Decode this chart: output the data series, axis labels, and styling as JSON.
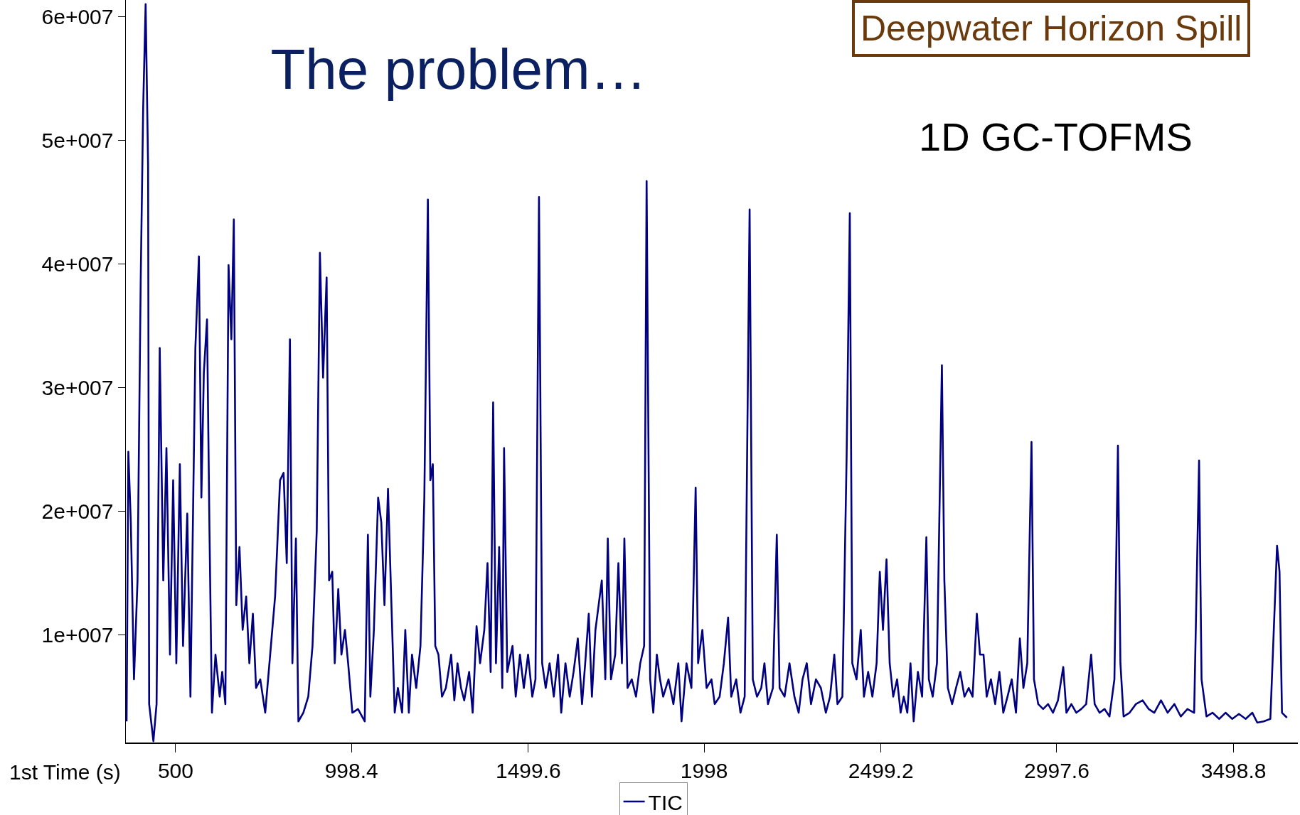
{
  "chart_data": {
    "type": "line",
    "title": "The problem…",
    "xlabel": "1st Time (s)",
    "annotations": [
      "1D GC-TOFMS",
      "Deepwater Horizon Spill"
    ],
    "xlim": [
      359,
      3681
    ],
    "ylim": [
      1290000,
      61340000
    ],
    "xticks": [
      500,
      998.4,
      1499.6,
      1998,
      2499.2,
      2997.6,
      3498.8
    ],
    "yticks": [
      {
        "value": 10000000,
        "label": "1e+007"
      },
      {
        "value": 20000000,
        "label": "2e+007"
      },
      {
        "value": 30000000,
        "label": "3e+007"
      },
      {
        "value": 40000000,
        "label": "4e+007"
      },
      {
        "value": 50000000,
        "label": "5e+007"
      },
      {
        "value": 60000000,
        "label": "6e+007"
      }
    ],
    "grid": false,
    "legend": "bottom",
    "marker": "none",
    "line_style": "solid",
    "x": [
      361,
      366,
      373,
      382,
      392,
      401,
      408,
      415,
      422,
      425,
      437,
      446,
      455,
      465,
      474,
      484,
      493,
      502,
      512,
      521,
      533,
      542,
      556,
      566,
      573,
      580,
      589,
      596,
      603,
      613,
      625,
      632,
      641,
      650,
      658,
      665,
      672,
      681,
      690,
      700,
      709,
      719,
      728,
      740,
      754,
      768,
      782,
      796,
      806,
      815,
      824,
      831,
      841,
      848,
      862,
      876,
      888,
      900,
      909,
      918,
      928,
      935,
      944,
      951,
      961,
      970,
      980,
      989,
      1001,
      1017,
      1036,
      1045,
      1052,
      1062,
      1074,
      1083,
      1092,
      1102,
      1111,
      1121,
      1130,
      1142,
      1151,
      1161,
      1170,
      1182,
      1194,
      1205,
      1215,
      1222,
      1229,
      1236,
      1245,
      1255,
      1266,
      1281,
      1290,
      1299,
      1309,
      1318,
      1332,
      1342,
      1353,
      1363,
      1375,
      1384,
      1393,
      1400,
      1408,
      1417,
      1426,
      1431,
      1440,
      1455,
      1464,
      1476,
      1487,
      1499,
      1511,
      1520,
      1530,
      1539,
      1549,
      1560,
      1572,
      1584,
      1593,
      1605,
      1617,
      1628,
      1640,
      1652,
      1661,
      1671,
      1680,
      1690,
      1699,
      1708,
      1718,
      1725,
      1734,
      1746,
      1755,
      1765,
      1772,
      1781,
      1793,
      1805,
      1817,
      1828,
      1835,
      1845,
      1854,
      1864,
      1873,
      1882,
      1897,
      1911,
      1925,
      1934,
      1948,
      1962,
      1974,
      1981,
      1993,
      2005,
      2019,
      2028,
      2042,
      2054,
      2066,
      2075,
      2089,
      2101,
      2113,
      2127,
      2136,
      2148,
      2160,
      2169,
      2179,
      2193,
      2204,
      2212,
      2226,
      2240,
      2254,
      2266,
      2277,
      2289,
      2301,
      2315,
      2329,
      2343,
      2355,
      2367,
      2376,
      2390,
      2402,
      2411,
      2418,
      2430,
      2442,
      2451,
      2463,
      2475,
      2487,
      2496,
      2505,
      2515,
      2524,
      2534,
      2545,
      2555,
      2564,
      2574,
      2583,
      2592,
      2604,
      2616,
      2628,
      2635,
      2646,
      2658,
      2672,
      2679,
      2689,
      2701,
      2712,
      2724,
      2736,
      2748,
      2759,
      2771,
      2780,
      2790,
      2799,
      2811,
      2823,
      2835,
      2846,
      2858,
      2870,
      2882,
      2893,
      2903,
      2914,
      2926,
      2933,
      2945,
      2959,
      2973,
      2987,
      3001,
      3016,
      3025,
      3039,
      3053,
      3067,
      3081,
      3095,
      3105,
      3119,
      3133,
      3147,
      3161,
      3171,
      3178,
      3187,
      3204,
      3222,
      3241,
      3258,
      3274,
      3293,
      3312,
      3331,
      3349,
      3368,
      3387,
      3401,
      3408,
      3422,
      3439,
      3458,
      3476,
      3495,
      3514,
      3533,
      3552,
      3566,
      3584,
      3603,
      3622,
      3629,
      3636,
      3650
    ],
    "series": [
      {
        "name": "TIC",
        "color": "#000080",
        "values": [
          3000000.0,
          24800000.0,
          19100000.0,
          6400000.0,
          14400000.0,
          38600000.0,
          52600000.0,
          61000000.0,
          47900000.0,
          4400000.0,
          1400000.0,
          4400000.0,
          33200000.0,
          14400000.0,
          25100000.0,
          8400000.0,
          22500000.0,
          7700000.0,
          23800000.0,
          9100000.0,
          19800000.0,
          5000000.0,
          33200000.0,
          40600000.0,
          21100000.0,
          31200000.0,
          35500000.0,
          18400000.0,
          3700000.0,
          8400000.0,
          5000000.0,
          7000000.0,
          4400000.0,
          39900000.0,
          33900000.0,
          43600000.0,
          12400000.0,
          17100000.0,
          10400000.0,
          13100000.0,
          7700000.0,
          11700000.0,
          5700000.0,
          6400000.0,
          3700000.0,
          8400000.0,
          13100000.0,
          22500000.0,
          23100000.0,
          15800000.0,
          33900000.0,
          7700000.0,
          17800000.0,
          3000000.0,
          3700000.0,
          5000000.0,
          9100000.0,
          18400000.0,
          40900000.0,
          30800000.0,
          38900000.0,
          14400000.0,
          15100000.0,
          7700000.0,
          13700000.0,
          8400000.0,
          10400000.0,
          7700000.0,
          3700000.0,
          4000000.0,
          3000000.0,
          18100000.0,
          5000000.0,
          10400000.0,
          21100000.0,
          19100000.0,
          12400000.0,
          21800000.0,
          13100000.0,
          3700000.0,
          5700000.0,
          3700000.0,
          10400000.0,
          3700000.0,
          8400000.0,
          5700000.0,
          9100000.0,
          21100000.0,
          45200000.0,
          22500000.0,
          23800000.0,
          9100000.0,
          8400000.0,
          5000000.0,
          5700000.0,
          8400000.0,
          4700000.0,
          7700000.0,
          5700000.0,
          4700000.0,
          7000000.0,
          3700000.0,
          10700000.0,
          7700000.0,
          10400000.0,
          15800000.0,
          7000000.0,
          28800000.0,
          7700000.0,
          17100000.0,
          5700000.0,
          25100000.0,
          7000000.0,
          9100000.0,
          5000000.0,
          8400000.0,
          5700000.0,
          8400000.0,
          5000000.0,
          6400000.0,
          45400000.0,
          7700000.0,
          5700000.0,
          7700000.0,
          5000000.0,
          8400000.0,
          3700000.0,
          7700000.0,
          5000000.0,
          7000000.0,
          9700000.0,
          4400000.0,
          7700000.0,
          11700000.0,
          5000000.0,
          10400000.0,
          12400000.0,
          14400000.0,
          6400000.0,
          17800000.0,
          6400000.0,
          8400000.0,
          15800000.0,
          7700000.0,
          17800000.0,
          5700000.0,
          6400000.0,
          5000000.0,
          7700000.0,
          9100000.0,
          46700000.0,
          6400000.0,
          3700000.0,
          8400000.0,
          6400000.0,
          5000000.0,
          6400000.0,
          4400000.0,
          7700000.0,
          3000000.0,
          7700000.0,
          5700000.0,
          21900000.0,
          7700000.0,
          10400000.0,
          5700000.0,
          6400000.0,
          4400000.0,
          5000000.0,
          7700000.0,
          11400000.0,
          5000000.0,
          6400000.0,
          3700000.0,
          5000000.0,
          44400000.0,
          6400000.0,
          5000000.0,
          5700000.0,
          7700000.0,
          4400000.0,
          5700000.0,
          18100000.0,
          5700000.0,
          5000000.0,
          7700000.0,
          5000000.0,
          3700000.0,
          6400000.0,
          7700000.0,
          4400000.0,
          6400000.0,
          5700000.0,
          3700000.0,
          5000000.0,
          8400000.0,
          4400000.0,
          5000000.0,
          24500000.0,
          44100000.0,
          7700000.0,
          6400000.0,
          10400000.0,
          5000000.0,
          7000000.0,
          5000000.0,
          7700000.0,
          15100000.0,
          10400000.0,
          16100000.0,
          7700000.0,
          5000000.0,
          6400000.0,
          3700000.0,
          5000000.0,
          3700000.0,
          7700000.0,
          3000000.0,
          7000000.0,
          5000000.0,
          17900000.0,
          6400000.0,
          5000000.0,
          7700000.0,
          31800000.0,
          14400000.0,
          5700000.0,
          4400000.0,
          5700000.0,
          7000000.0,
          5000000.0,
          5700000.0,
          5000000.0,
          11700000.0,
          8400000.0,
          8400000.0,
          5000000.0,
          6400000.0,
          4400000.0,
          7000000.0,
          3700000.0,
          5000000.0,
          6400000.0,
          3700000.0,
          9700000.0,
          5700000.0,
          7700000.0,
          25600000.0,
          6400000.0,
          4400000.0,
          4000000.0,
          4400000.0,
          3700000.0,
          4700000.0,
          7400000.0,
          3700000.0,
          4400000.0,
          3700000.0,
          4000000.0,
          4400000.0,
          8400000.0,
          4400000.0,
          3700000.0,
          4000000.0,
          3400000.0,
          6400000.0,
          25300000.0,
          7700000.0,
          3400000.0,
          3700000.0,
          4400000.0,
          4700000.0,
          4000000.0,
          3700000.0,
          4700000.0,
          3700000.0,
          4400000.0,
          3400000.0,
          4000000.0,
          3700000.0,
          24100000.0,
          6400000.0,
          3400000.0,
          3700000.0,
          3200000.0,
          3700000.0,
          3200000.0,
          3600000.0,
          3200000.0,
          3700000.0,
          2900000.0,
          3000000.0,
          3200000.0,
          17200000.0,
          15100000.0,
          3700000.0,
          3300000.0
        ]
      }
    ]
  }
}
